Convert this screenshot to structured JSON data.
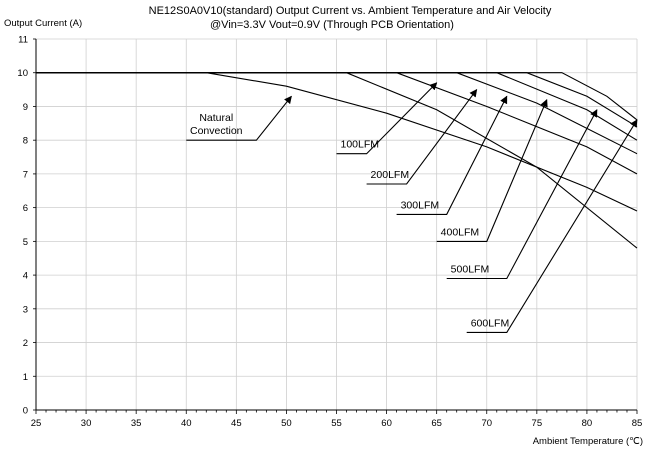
{
  "chart_data": {
    "type": "line",
    "title": "NE12S0A0V10(standard)  Output Current vs. Ambient Temperature and Air Velocity",
    "subtitle": "@Vin=3.3V Vout=0.9V (Through PCB Orientation)",
    "ylabel": "Output Current (A)",
    "xlabel": "Ambient Temperature (℃)",
    "xlim": [
      25,
      85
    ],
    "ylim": [
      0,
      11
    ],
    "x_ticks": [
      25,
      30,
      35,
      40,
      45,
      50,
      55,
      60,
      65,
      70,
      75,
      80,
      85
    ],
    "y_ticks": [
      0,
      1,
      2,
      3,
      4,
      5,
      6,
      7,
      8,
      9,
      10,
      11
    ],
    "grid": true,
    "legend": "none",
    "series": [
      {
        "name": "Natural Convection",
        "points": [
          [
            25,
            10
          ],
          [
            42,
            10
          ],
          [
            50,
            9.6
          ],
          [
            60,
            8.8
          ],
          [
            70,
            7.8
          ],
          [
            80,
            6.6
          ],
          [
            85,
            5.9
          ]
        ]
      },
      {
        "name": "100LFM",
        "points": [
          [
            25,
            10
          ],
          [
            56,
            10
          ],
          [
            65,
            8.9
          ],
          [
            75,
            7.2
          ],
          [
            85,
            4.8
          ]
        ]
      },
      {
        "name": "200LFM",
        "points": [
          [
            25,
            10
          ],
          [
            61,
            10
          ],
          [
            70,
            9.0
          ],
          [
            80,
            7.8
          ],
          [
            85,
            7.0
          ]
        ]
      },
      {
        "name": "300LFM",
        "points": [
          [
            25,
            10
          ],
          [
            67,
            10
          ],
          [
            75,
            9.1
          ],
          [
            85,
            7.6
          ]
        ]
      },
      {
        "name": "400LFM",
        "points": [
          [
            25,
            10
          ],
          [
            71,
            10
          ],
          [
            80,
            8.9
          ],
          [
            85,
            8.0
          ]
        ]
      },
      {
        "name": "500LFM",
        "points": [
          [
            25,
            10
          ],
          [
            74,
            10
          ],
          [
            80,
            9.3
          ],
          [
            85,
            8.4
          ]
        ]
      },
      {
        "name": "600LFM",
        "points": [
          [
            25,
            10
          ],
          [
            77.5,
            10
          ],
          [
            82,
            9.3
          ],
          [
            85,
            8.6
          ]
        ]
      }
    ],
    "annotations": [
      {
        "label_lines": [
          "Natural",
          "Convection"
        ],
        "leader": [
          [
            40,
            8.0
          ],
          [
            47,
            8.0
          ],
          [
            50.5,
            9.3
          ]
        ]
      },
      {
        "label_lines": [
          "100LFM"
        ],
        "leader": [
          [
            55,
            7.6
          ],
          [
            58,
            7.6
          ],
          [
            65,
            9.7
          ]
        ]
      },
      {
        "label_lines": [
          "200LFM"
        ],
        "leader": [
          [
            58,
            6.7
          ],
          [
            62,
            6.7
          ],
          [
            69,
            9.5
          ]
        ]
      },
      {
        "label_lines": [
          "300LFM"
        ],
        "leader": [
          [
            61,
            5.8
          ],
          [
            66,
            5.8
          ],
          [
            72,
            9.3
          ]
        ]
      },
      {
        "label_lines": [
          "400LFM"
        ],
        "leader": [
          [
            65,
            5.0
          ],
          [
            70,
            5.0
          ],
          [
            76,
            9.2
          ]
        ]
      },
      {
        "label_lines": [
          "500LFM"
        ],
        "leader": [
          [
            66,
            3.9
          ],
          [
            72,
            3.9
          ],
          [
            81,
            8.9
          ]
        ]
      },
      {
        "label_lines": [
          "600LFM"
        ],
        "leader": [
          [
            68,
            2.3
          ],
          [
            72,
            2.3
          ],
          [
            85,
            8.6
          ]
        ]
      }
    ]
  }
}
